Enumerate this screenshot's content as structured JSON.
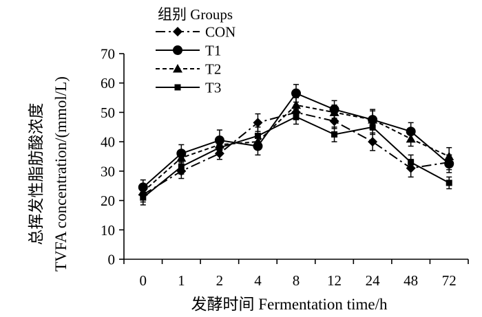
{
  "chart_data": {
    "type": "line",
    "xlabel": "发酵时间 Fermentation time/h",
    "ylabel_lines": [
      "总挥发性脂肪酸浓度",
      "TVFA concentration/(mmol/L)"
    ],
    "categories": [
      "0",
      "1",
      "2",
      "4",
      "8",
      "12",
      "24",
      "48",
      "72"
    ],
    "ylim": [
      0,
      70
    ],
    "yticks": [
      0,
      10,
      20,
      30,
      40,
      50,
      60,
      70
    ],
    "grid": false,
    "legend": {
      "title": "组别 Groups",
      "placement": "top-left"
    },
    "color": "#000000",
    "series": [
      {
        "name": "CON",
        "marker": "diamond",
        "line_style": "dash-dot",
        "values": [
          22,
          30,
          36,
          46.5,
          50,
          47,
          40,
          31,
          33
        ],
        "errors": [
          2.5,
          2.5,
          2,
          3,
          2.5,
          2.5,
          3,
          3,
          2.5
        ]
      },
      {
        "name": "T1",
        "marker": "circle",
        "line_style": "solid",
        "values": [
          24.5,
          36,
          40.5,
          38.5,
          56.5,
          51,
          47.5,
          43.5,
          32.5
        ],
        "errors": [
          2.5,
          3,
          3.5,
          3,
          3,
          3,
          3.5,
          3,
          3
        ]
      },
      {
        "name": "T2",
        "marker": "triangle",
        "line_style": "dashed",
        "values": [
          23,
          34.5,
          39,
          40,
          52.5,
          50,
          47.5,
          41,
          35
        ],
        "errors": [
          2,
          2.5,
          2.5,
          2.5,
          2.5,
          2.5,
          3,
          2.5,
          3
        ]
      },
      {
        "name": "T3",
        "marker": "square",
        "line_style": "solid",
        "values": [
          21,
          31.5,
          38,
          42,
          48.5,
          42.5,
          45,
          33,
          26
        ],
        "errors": [
          2.5,
          2.5,
          2.5,
          3,
          2.5,
          2.5,
          2.5,
          2.5,
          2
        ]
      }
    ]
  }
}
